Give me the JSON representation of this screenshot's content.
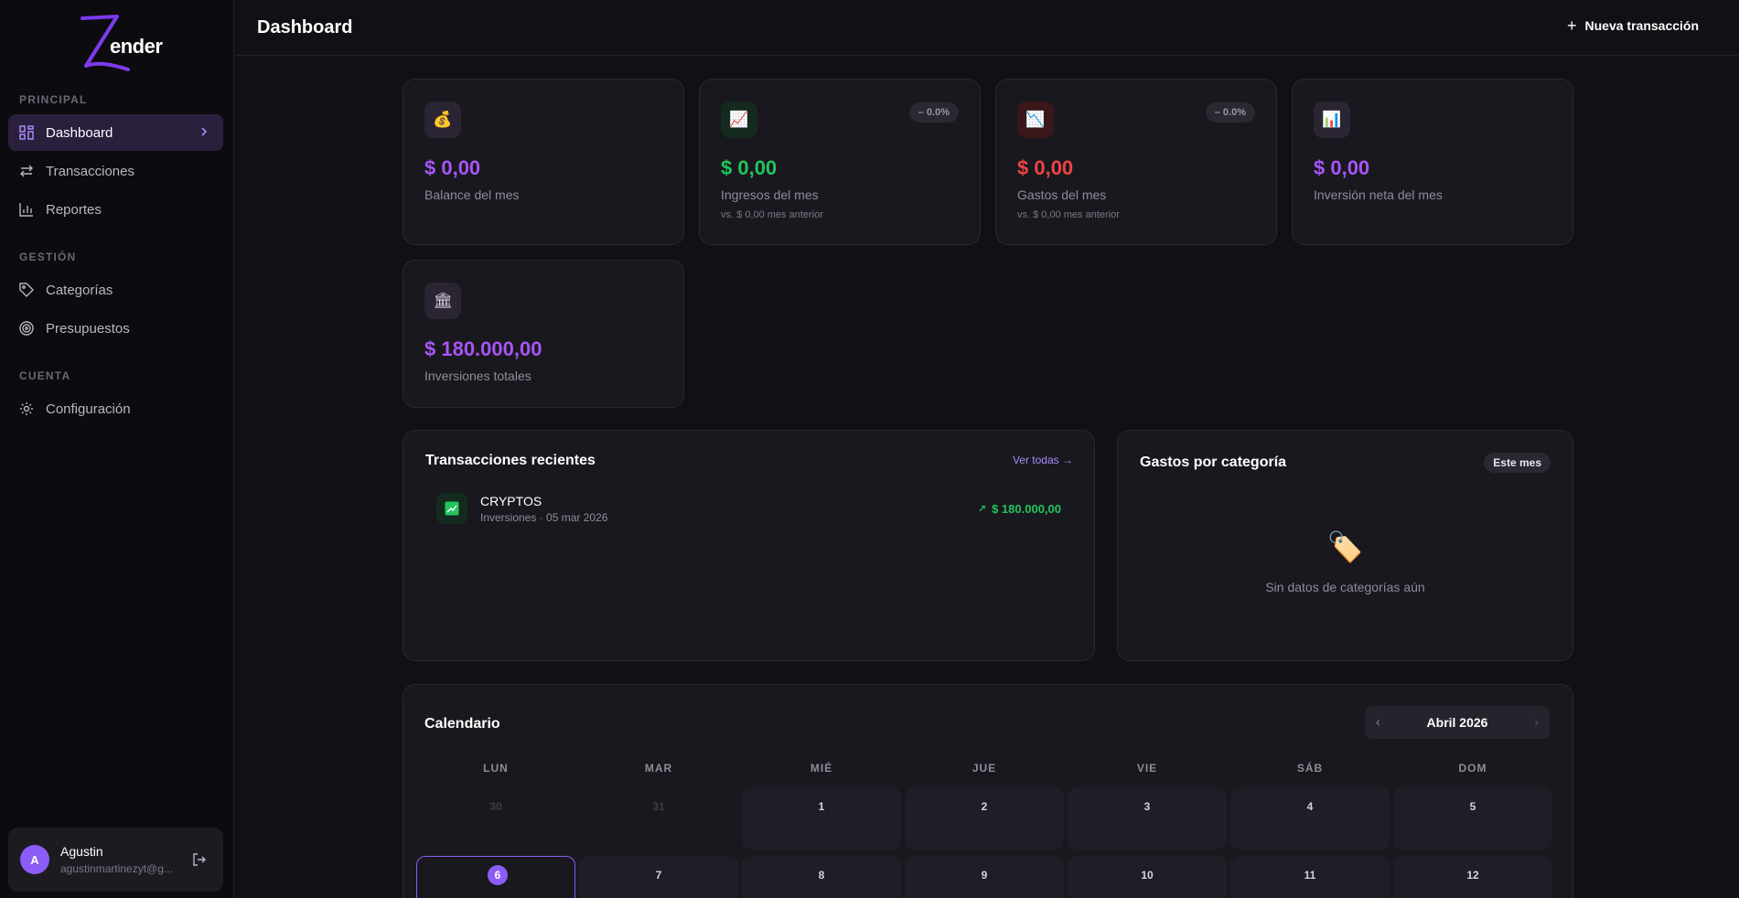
{
  "brand": {
    "name": "ender",
    "logo_letter": "Z"
  },
  "sidebar": {
    "sections": [
      {
        "title": "PRINCIPAL"
      },
      {
        "title": "GESTIÓN"
      },
      {
        "title": "CUENTA"
      }
    ],
    "items": [
      {
        "label": "Dashboard",
        "active": true
      },
      {
        "label": "Transacciones"
      },
      {
        "label": "Reportes"
      },
      {
        "label": "Categorías"
      },
      {
        "label": "Presupuestos"
      },
      {
        "label": "Configuración"
      }
    ],
    "user": {
      "initial": "A",
      "name": "Agustin",
      "email": "agustinmartinezyt@g..."
    }
  },
  "header": {
    "title": "Dashboard",
    "new_transaction": "Nueva transacción"
  },
  "stats": [
    {
      "icon": "💰",
      "value": "$ 0,00",
      "label": "Balance del mes",
      "color": "#a855f7"
    },
    {
      "icon": "📈",
      "value": "$ 0,00",
      "label": "Ingresos del mes",
      "sub": "vs. $ 0,00 mes anterior",
      "badge": "– 0.0%",
      "color": "#22c55e"
    },
    {
      "icon": "📉",
      "value": "$ 0,00",
      "label": "Gastos del mes",
      "sub": "vs. $ 0,00 mes anterior",
      "badge": "– 0.0%",
      "color": "#ef4444"
    },
    {
      "icon": "📊",
      "value": "$ 0,00",
      "label": "Inversión neta del mes",
      "color": "#a855f7"
    },
    {
      "icon": "🏛",
      "value": "$ 180.000,00",
      "label": "Inversiones totales",
      "color": "#a855f7"
    }
  ],
  "recent": {
    "title": "Transacciones recientes",
    "view_all": "Ver todas →",
    "items": [
      {
        "name": "CRYPTOS",
        "meta": "Inversiones · 05 mar 2026",
        "amount": "$ 180.000,00",
        "arrow": "↗"
      }
    ]
  },
  "categories": {
    "title": "Gastos por categoría",
    "period": "Este mes",
    "empty_icon": "🏷️",
    "empty_text": "Sin datos de categorías aún"
  },
  "calendar": {
    "title": "Calendario",
    "month": "Abril 2026",
    "weekdays": [
      "LUN",
      "MAR",
      "MIÉ",
      "JUE",
      "VIE",
      "SÁB",
      "DOM"
    ],
    "rows": [
      [
        "30",
        "31",
        "1",
        "2",
        "3",
        "4",
        "5"
      ],
      [
        "6",
        "7",
        "8",
        "9",
        "10",
        "11",
        "12"
      ]
    ],
    "today": "6"
  },
  "colors": {
    "accent": "#8b5cf6",
    "income": "#22c55e",
    "expense": "#ef4444"
  }
}
